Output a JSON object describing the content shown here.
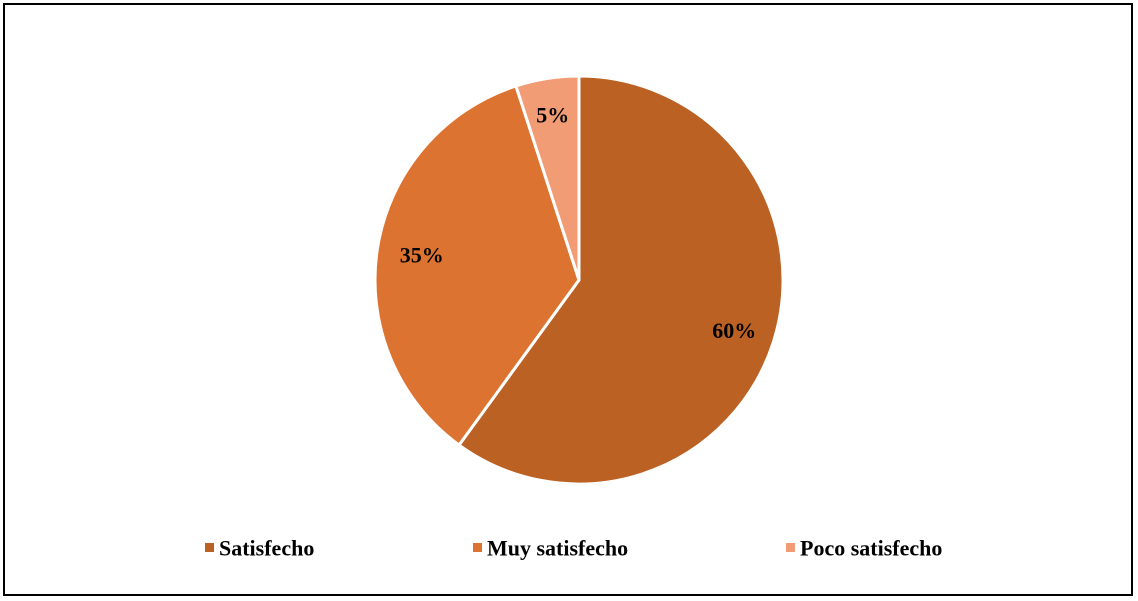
{
  "chart_data": {
    "type": "pie",
    "categories": [
      "Satisfecho",
      "Muy satisfecho",
      "Poco satisfecho"
    ],
    "values": [
      60,
      35,
      5
    ],
    "data_labels": [
      "60%",
      "35%",
      "5%"
    ],
    "colors": [
      "#BA6123",
      "#DD7330",
      "#F19C75"
    ],
    "legend_position": "bottom",
    "start_angle": "12 o'clock, clockwise"
  }
}
